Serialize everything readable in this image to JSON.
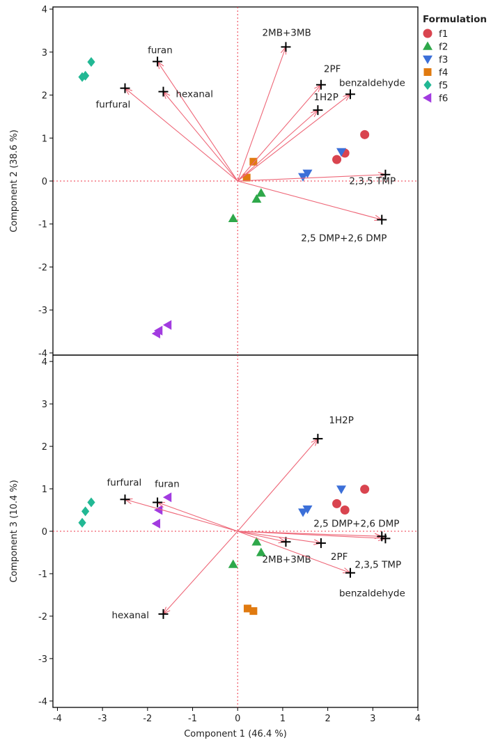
{
  "legend": {
    "title": "Formulation",
    "items": [
      {
        "name": "f1",
        "color": "#d9444f",
        "shape": "circle"
      },
      {
        "name": "f2",
        "color": "#2ea84a",
        "shape": "triangle-up"
      },
      {
        "name": "f3",
        "color": "#3b6fd8",
        "shape": "triangle-down"
      },
      {
        "name": "f4",
        "color": "#e07a10",
        "shape": "square"
      },
      {
        "name": "f5",
        "color": "#22b894",
        "shape": "diamond"
      },
      {
        "name": "f6",
        "color": "#a23be0",
        "shape": "triangle-left"
      }
    ]
  },
  "chart_data": [
    {
      "type": "scatter",
      "title": "",
      "xlabel": "",
      "ylabel": "Component 2 (38.6 %)",
      "xlim": [
        -4.1,
        4.0
      ],
      "ylim": [
        -4.05,
        4.05
      ],
      "yticks": [
        "-4",
        "-3",
        "-2",
        "-1",
        "0",
        "1",
        "2",
        "3",
        "4"
      ],
      "arrow_color": "#ee6677",
      "series": [
        {
          "name": "f1",
          "points": [
            [
              2.2,
              0.5
            ],
            [
              2.38,
              0.65
            ],
            [
              2.82,
              1.08
            ]
          ]
        },
        {
          "name": "f2",
          "points": [
            [
              -0.1,
              -0.87
            ],
            [
              0.42,
              -0.42
            ],
            [
              0.52,
              -0.28
            ]
          ]
        },
        {
          "name": "f3",
          "points": [
            [
              1.45,
              0.1
            ],
            [
              1.55,
              0.18
            ],
            [
              2.3,
              0.68
            ]
          ]
        },
        {
          "name": "f4",
          "points": [
            [
              0.2,
              0.08
            ],
            [
              0.35,
              0.45
            ]
          ]
        },
        {
          "name": "f5",
          "points": [
            [
              -3.45,
              2.42
            ],
            [
              -3.38,
              2.45
            ],
            [
              -3.25,
              2.77
            ]
          ]
        },
        {
          "name": "f6",
          "points": [
            [
              -1.8,
              -3.55
            ],
            [
              -1.75,
              -3.48
            ],
            [
              -1.55,
              -3.35
            ]
          ]
        }
      ],
      "loadings": [
        {
          "label": "furan",
          "x": -1.78,
          "y": 2.78
        },
        {
          "label": "furfural",
          "x": -2.5,
          "y": 2.16
        },
        {
          "label": "hexanal",
          "x": -1.65,
          "y": 2.08
        },
        {
          "label": "2MB+3MB",
          "x": 1.07,
          "y": 3.12
        },
        {
          "label": "2PF",
          "x": 1.85,
          "y": 2.24
        },
        {
          "label": "benzaldehyde",
          "x": 2.5,
          "y": 2.02
        },
        {
          "label": "1H2P",
          "x": 1.78,
          "y": 1.65
        },
        {
          "label": "2,3,5 TMP",
          "x": 3.28,
          "y": 0.15
        },
        {
          "label": "2,5 DMP+2,6 DMP",
          "x": 3.2,
          "y": -0.9
        }
      ]
    },
    {
      "type": "scatter",
      "title": "",
      "xlabel": "Component 1 (46.4 %)",
      "ylabel": "Component 3 (10.4 %)",
      "xlim": [
        -4.1,
        4.0
      ],
      "ylim": [
        -4.15,
        4.15
      ],
      "xticks": [
        "-4",
        "-3",
        "-2",
        "-1",
        "0",
        "1",
        "2",
        "3",
        "4"
      ],
      "yticks": [
        "-4",
        "-3",
        "-2",
        "-1",
        "0",
        "1",
        "2",
        "3",
        "4"
      ],
      "arrow_color": "#ee6677",
      "series": [
        {
          "name": "f1",
          "points": [
            [
              2.2,
              0.65
            ],
            [
              2.38,
              0.5
            ],
            [
              2.82,
              0.99
            ]
          ]
        },
        {
          "name": "f2",
          "points": [
            [
              -0.1,
              -0.78
            ],
            [
              0.42,
              -0.25
            ],
            [
              0.52,
              -0.5
            ]
          ]
        },
        {
          "name": "f3",
          "points": [
            [
              1.45,
              0.45
            ],
            [
              1.55,
              0.52
            ],
            [
              2.3,
              0.99
            ]
          ]
        },
        {
          "name": "f4",
          "points": [
            [
              0.22,
              -1.82
            ],
            [
              0.35,
              -1.88
            ]
          ]
        },
        {
          "name": "f5",
          "points": [
            [
              -3.45,
              0.2
            ],
            [
              -3.38,
              0.47
            ],
            [
              -3.25,
              0.68
            ]
          ]
        },
        {
          "name": "f6",
          "points": [
            [
              -1.8,
              0.18
            ],
            [
              -1.75,
              0.5
            ],
            [
              -1.55,
              0.8
            ]
          ]
        }
      ],
      "loadings": [
        {
          "label": "1H2P",
          "x": 1.78,
          "y": 2.18
        },
        {
          "label": "furfural",
          "x": -2.5,
          "y": 0.75
        },
        {
          "label": "furan",
          "x": -1.78,
          "y": 0.68
        },
        {
          "label": "hexanal",
          "x": -1.65,
          "y": -1.95
        },
        {
          "label": "2MB+3MB",
          "x": 1.07,
          "y": -0.25
        },
        {
          "label": "2PF",
          "x": 1.85,
          "y": -0.28
        },
        {
          "label": "benzaldehyde",
          "x": 2.5,
          "y": -0.98
        },
        {
          "label": "2,3,5 TMP",
          "x": 3.28,
          "y": -0.17
        },
        {
          "label": "2,5 DMP+2,6 DMP",
          "x": 3.2,
          "y": -0.12
        }
      ]
    }
  ]
}
